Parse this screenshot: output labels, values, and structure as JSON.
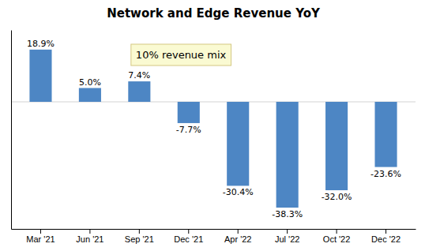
{
  "chart_data": {
    "type": "bar",
    "title": "Network and Edge Revenue YoY",
    "categories": [
      "Mar '21",
      "Jun '21",
      "Sep '21",
      "Dec '21",
      "Apr '22",
      "Jul '22",
      "Oct '22",
      "Dec '22"
    ],
    "values": [
      18.9,
      5.0,
      7.4,
      -7.7,
      -30.4,
      -38.3,
      -32.0,
      -23.6
    ],
    "value_labels": [
      "18.9%",
      "5.0%",
      "7.4%",
      "-7.7%",
      "-30.4%",
      "-38.3%",
      "-32.0%",
      "-23.6%"
    ],
    "data_labels": true,
    "color": "#4d86c4",
    "ylim": [
      -46,
      26
    ],
    "yticks": [],
    "tick_labels": "x",
    "grid": false,
    "annotation": "10% revenue mix"
  }
}
